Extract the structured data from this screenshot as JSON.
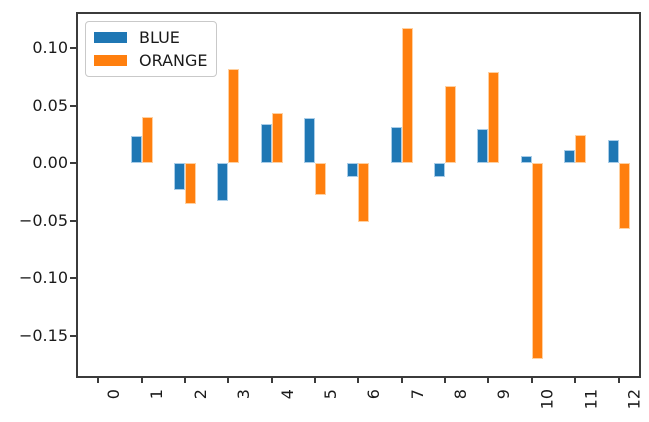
{
  "chart_data": {
    "type": "bar",
    "title": "",
    "xlabel": "",
    "ylabel": "",
    "categories": [
      "0",
      "1",
      "2",
      "3",
      "4",
      "5",
      "6",
      "7",
      "8",
      "9",
      "10",
      "11",
      "12"
    ],
    "series": [
      {
        "name": "BLUE",
        "color": "#1f77b4",
        "edge_color": "#a9cde8",
        "values": [
          0,
          0.024,
          -0.023,
          -0.033,
          0.034,
          0.039,
          -0.012,
          0.032,
          -0.012,
          0.03,
          0.006,
          0.012,
          0.02
        ]
      },
      {
        "name": "ORANGE",
        "color": "#ff7f0e",
        "edge_color": "#ffd0a0",
        "values": [
          0,
          0.04,
          -0.035,
          0.082,
          0.044,
          -0.028,
          -0.051,
          0.118,
          0.067,
          0.079,
          -0.17,
          0.025,
          -0.057
        ]
      }
    ],
    "yticks": [
      0.1,
      0.05,
      0.0,
      -0.05,
      -0.1,
      -0.15
    ],
    "ytick_labels": [
      "0.10",
      "0.05",
      "0.00",
      "−0.05",
      "−0.10",
      "−0.15"
    ],
    "ylim": [
      -0.187,
      0.132
    ],
    "grid": false,
    "legend_position": "upper left",
    "axis_color": "#3b3b3b",
    "tick_label_color": "#1a1a1a"
  }
}
